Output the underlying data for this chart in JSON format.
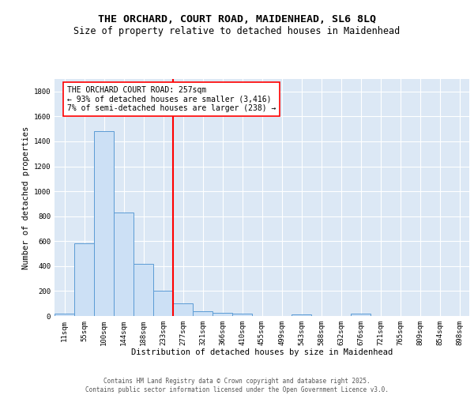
{
  "title_line1": "THE ORCHARD, COURT ROAD, MAIDENHEAD, SL6 8LQ",
  "title_line2": "Size of property relative to detached houses in Maidenhead",
  "xlabel": "Distribution of detached houses by size in Maidenhead",
  "ylabel": "Number of detached properties",
  "bar_labels": [
    "11sqm",
    "55sqm",
    "100sqm",
    "144sqm",
    "188sqm",
    "233sqm",
    "277sqm",
    "321sqm",
    "366sqm",
    "410sqm",
    "455sqm",
    "499sqm",
    "543sqm",
    "588sqm",
    "632sqm",
    "676sqm",
    "721sqm",
    "765sqm",
    "809sqm",
    "854sqm",
    "898sqm"
  ],
  "bar_values": [
    20,
    580,
    1480,
    830,
    420,
    200,
    100,
    35,
    25,
    18,
    0,
    0,
    15,
    0,
    0,
    20,
    0,
    0,
    0,
    0,
    0
  ],
  "bar_color": "#cce0f5",
  "bar_edge_color": "#5b9bd5",
  "vline_x": 5.5,
  "vline_color": "red",
  "vline_linewidth": 1.5,
  "annotation_text": "THE ORCHARD COURT ROAD: 257sqm\n← 93% of detached houses are smaller (3,416)\n7% of semi-detached houses are larger (238) →",
  "annotation_box_color": "white",
  "annotation_border_color": "red",
  "ylim": [
    0,
    1900
  ],
  "yticks": [
    0,
    200,
    400,
    600,
    800,
    1000,
    1200,
    1400,
    1600,
    1800
  ],
  "background_color": "#dce8f5",
  "grid_color": "white",
  "footer_text": "Contains HM Land Registry data © Crown copyright and database right 2025.\nContains public sector information licensed under the Open Government Licence v3.0.",
  "title_fontsize": 9.5,
  "subtitle_fontsize": 8.5,
  "axis_label_fontsize": 7.5,
  "tick_fontsize": 6.5,
  "annotation_fontsize": 7,
  "footer_fontsize": 5.5
}
